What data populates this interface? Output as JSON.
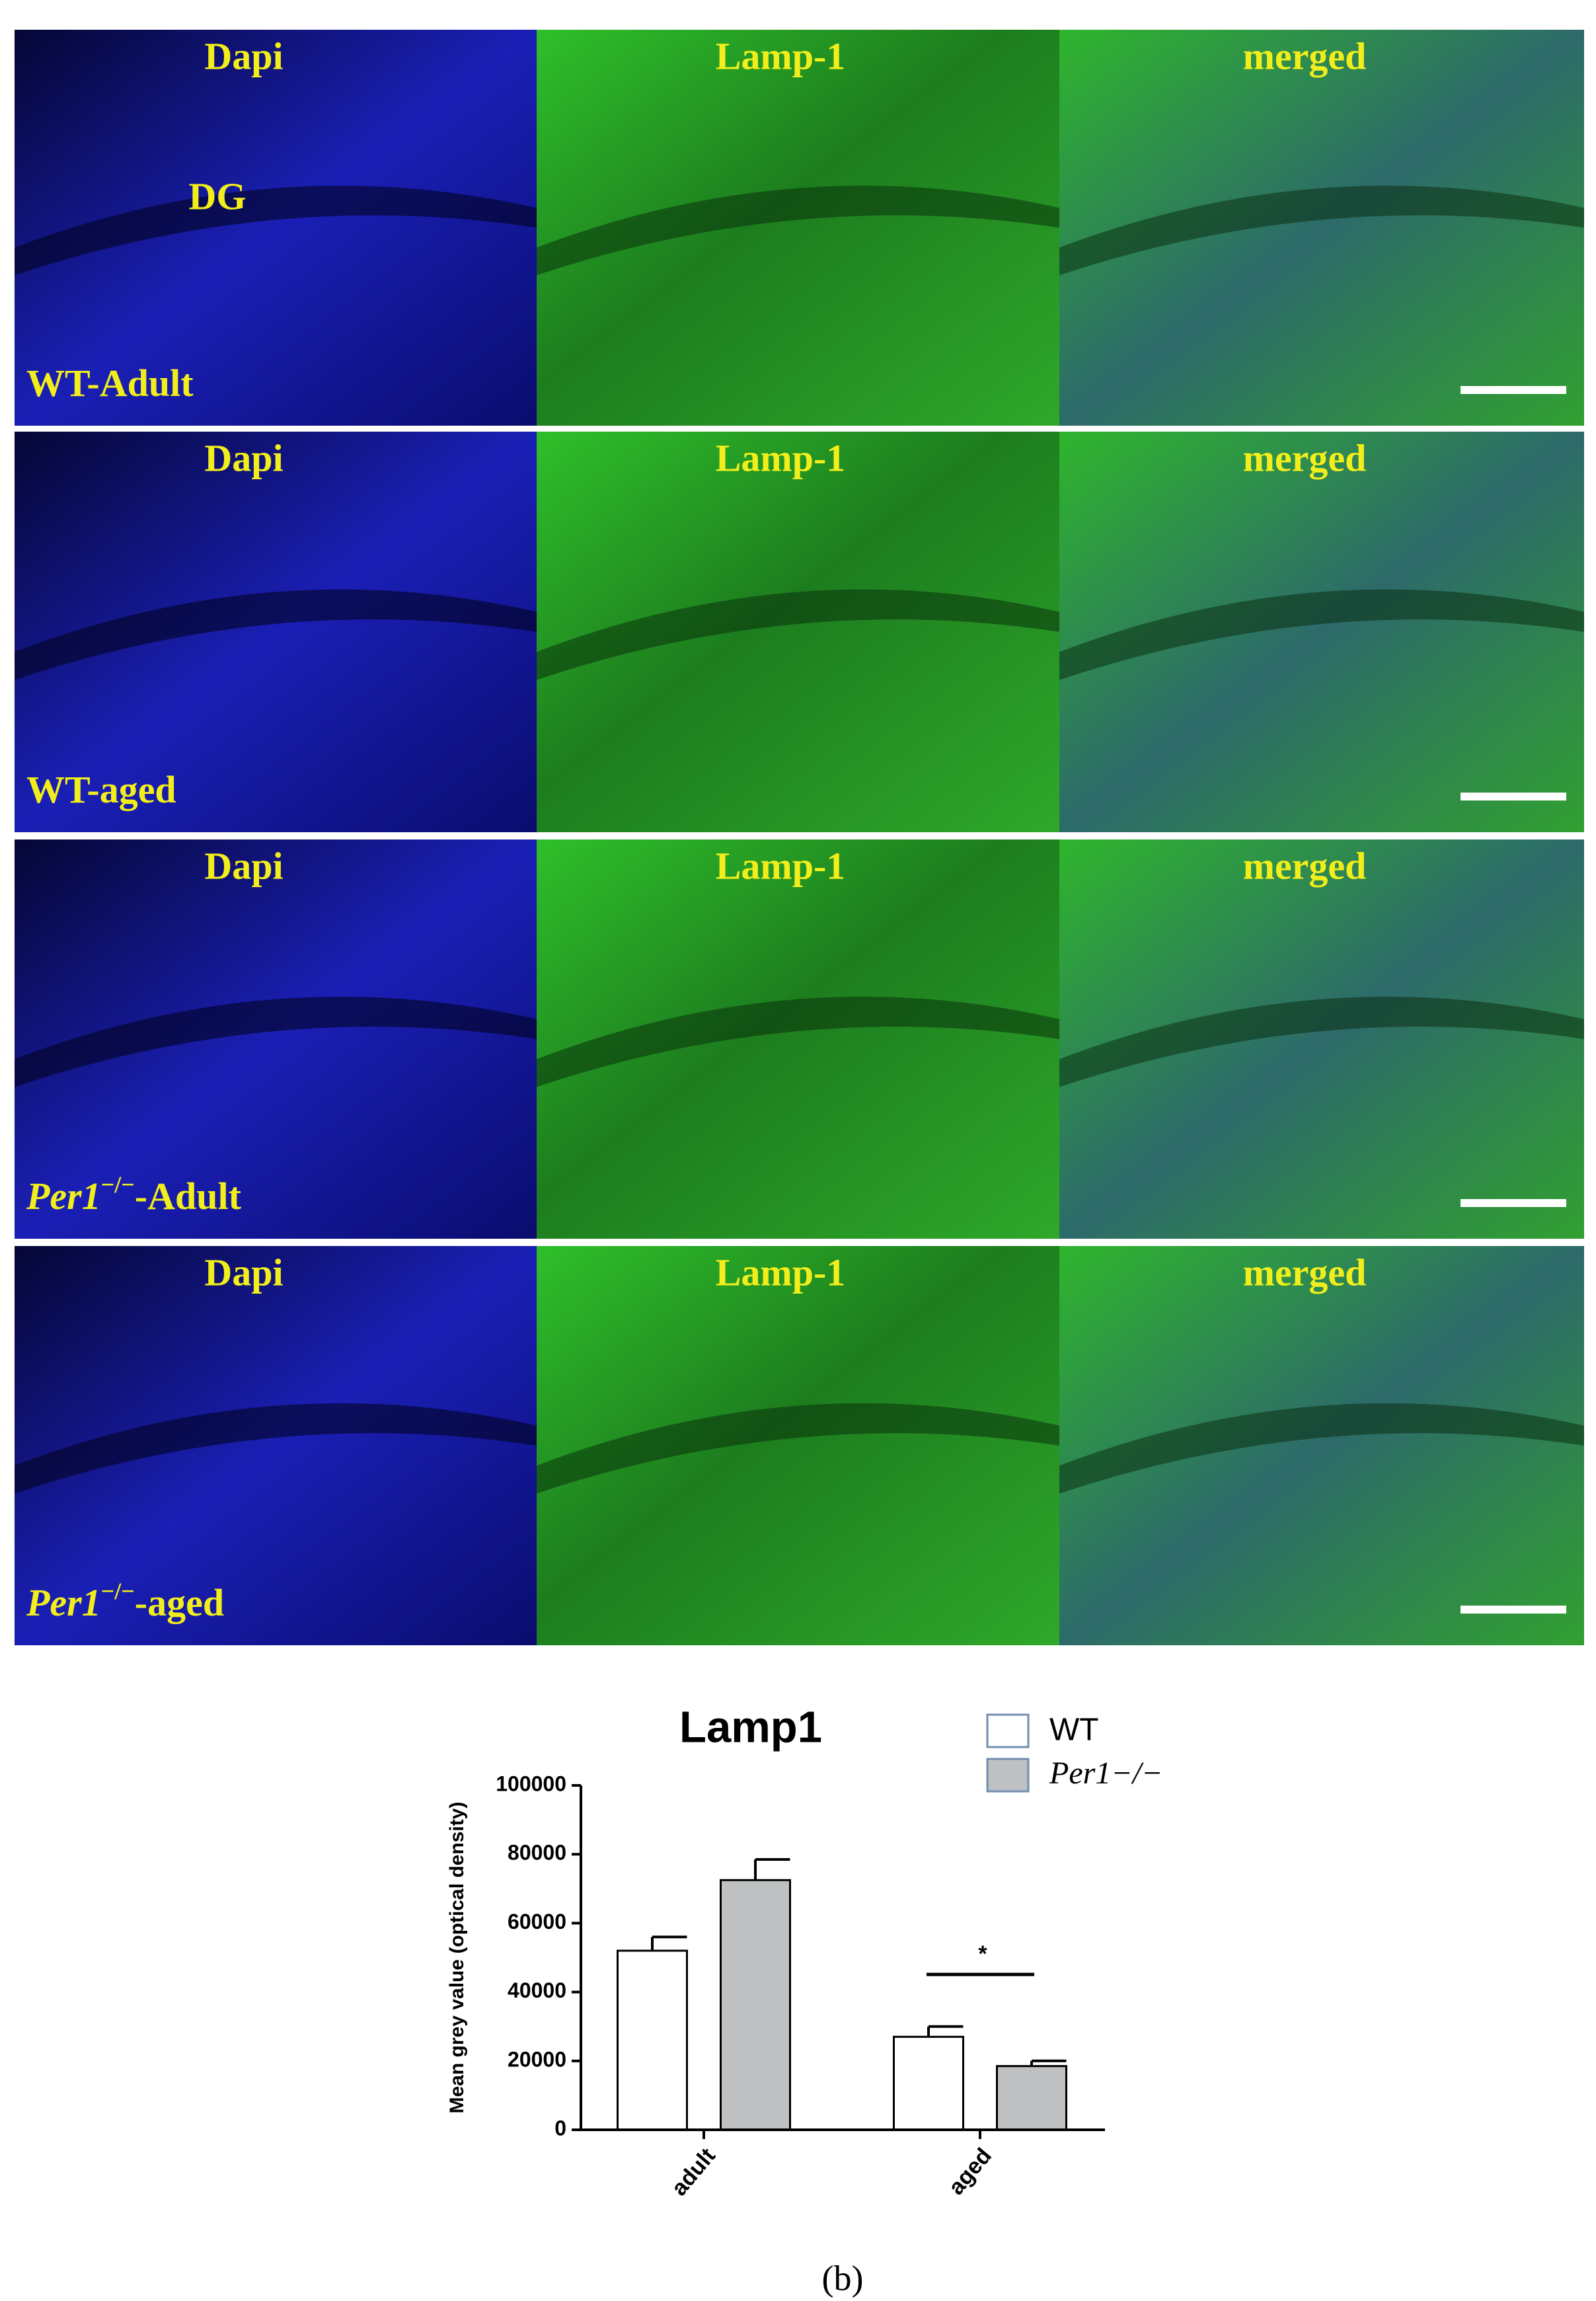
{
  "panels": {
    "columns": [
      "Dapi",
      "Lamp-1",
      "merged"
    ],
    "rows": [
      {
        "channels": [
          "Dapi",
          "Lamp-1",
          "merged"
        ],
        "region": "DG",
        "group": {
          "gene": "WT",
          "suffix": "-Adult"
        }
      },
      {
        "channels": [
          "Dapi",
          "Lamp-1",
          "merged"
        ],
        "group": {
          "gene": "WT",
          "suffix": "-aged"
        }
      },
      {
        "channels": [
          "Dapi",
          "Lamp-1",
          "merged"
        ],
        "group": {
          "gene": "Per1",
          "superscript": "−/−",
          "suffix": "-Adult"
        }
      },
      {
        "channels": [
          "Dapi",
          "Lamp-1",
          "merged"
        ],
        "group": {
          "gene": "Per1",
          "superscript": "−/−",
          "suffix": "-aged"
        }
      }
    ]
  },
  "chart_data": {
    "type": "bar",
    "title": "Lamp1",
    "y_label": "Mean grey value (optical density)",
    "categories": [
      "adult",
      "aged"
    ],
    "series": [
      {
        "name": "WT",
        "color": "#ffffff",
        "values": [
          52000,
          27000
        ],
        "errors": [
          4000,
          3000
        ]
      },
      {
        "name": "Per1−/−",
        "color": "#bfc0c2",
        "values": [
          72500,
          18500
        ],
        "errors": [
          6000,
          1500
        ]
      }
    ],
    "ylim": [
      0,
      100000
    ],
    "yticks": [
      0,
      20000,
      40000,
      60000,
      80000,
      100000
    ],
    "annotation": "*"
  },
  "caption": "(b)"
}
